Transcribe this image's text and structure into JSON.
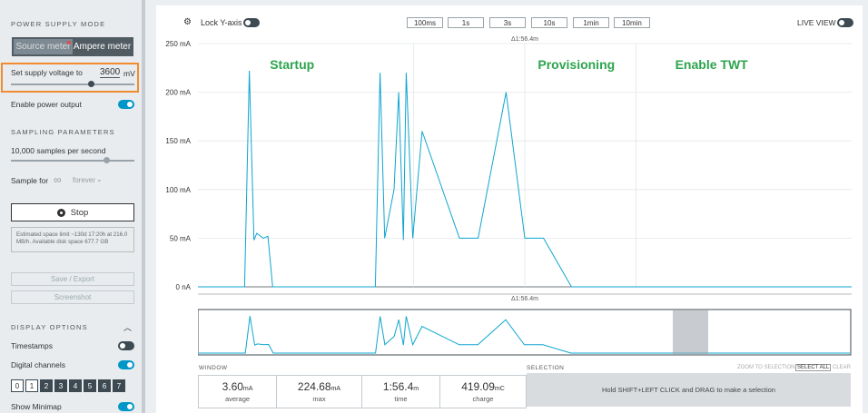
{
  "sidebar": {
    "power_supply_title": "POWER SUPPLY MODE",
    "mode_source": "Source meter",
    "mode_ampere": "Ampere meter",
    "supply_label": "Set supply voltage to",
    "supply_value": "3600",
    "supply_unit": "mV",
    "enable_power": "Enable power output",
    "sampling_title": "SAMPLING PARAMETERS",
    "samples_label": "10,000 samples per second",
    "sample_for_label": "Sample for",
    "sample_for_symbol": "∞",
    "sample_for_value": "forever",
    "stop_label": "Stop",
    "space_info": "Estimated space limit ~130d 17:20h at 216.0 MB/h. Available disk space 677.7 GB",
    "save_export": "Save / Export",
    "screenshot": "Screenshot",
    "display_title": "DISPLAY OPTIONS",
    "timestamps": "Timestamps",
    "digital_channels": "Digital channels",
    "channels": [
      "0",
      "1",
      "2",
      "3",
      "4",
      "5",
      "6",
      "7"
    ],
    "show_minimap": "Show Minimap"
  },
  "toolbar": {
    "lock_y": "Lock Y-axis",
    "time_buttons": [
      "100ms",
      "1s",
      "3s",
      "10s",
      "1min",
      "10min"
    ],
    "live_view": "LIVE VIEW"
  },
  "chart_data": {
    "type": "line",
    "delta_top": "Δ1:56.4m",
    "delta_bottom": "Δ1:56.4m",
    "y_ticks": [
      "250 mA",
      "200 mA",
      "150 mA",
      "100 mA",
      "50 mA",
      "0 nA"
    ],
    "ylim": [
      0,
      250
    ],
    "x": [
      0,
      4,
      5,
      5.5,
      6,
      6.3,
      7,
      7.5,
      8,
      9,
      10,
      11,
      12,
      13,
      14,
      15,
      16,
      17,
      18,
      19,
      19.5,
      20,
      21,
      21.5,
      22,
      22.3,
      23,
      24,
      28,
      30,
      33,
      35,
      37,
      40,
      50,
      60,
      70
    ],
    "values": [
      0,
      0,
      0,
      222,
      48,
      55,
      50,
      52,
      0,
      0,
      0,
      0,
      0,
      0,
      0,
      0,
      0,
      0,
      0,
      0,
      220,
      50,
      100,
      200,
      48,
      220,
      50,
      160,
      50,
      50,
      200,
      50,
      50,
      0,
      0,
      0,
      0
    ],
    "annotations": [
      "Startup",
      "Provisioning",
      "Enable TWT"
    ]
  },
  "colors": {
    "accent": "#0096c8",
    "annotation": "#2da44e",
    "highlight": "#f28b30"
  },
  "window": {
    "title": "WINDOW",
    "average_value": "3.60",
    "average_unit": "mA",
    "average_label": "average",
    "max_value": "224.68",
    "max_unit": "mA",
    "max_label": "max",
    "time_value": "1:56.4",
    "time_unit": "m",
    "time_label": "time",
    "charge_value": "419.09",
    "charge_unit": "mC",
    "charge_label": "charge"
  },
  "selection": {
    "title": "SELECTION",
    "zoom_to_selection": "ZOOM TO SELECTION",
    "select_all": "SELECT ALL",
    "clear": "CLEAR",
    "hint": "Hold SHIFT+LEFT CLICK and DRAG to make a selection"
  }
}
